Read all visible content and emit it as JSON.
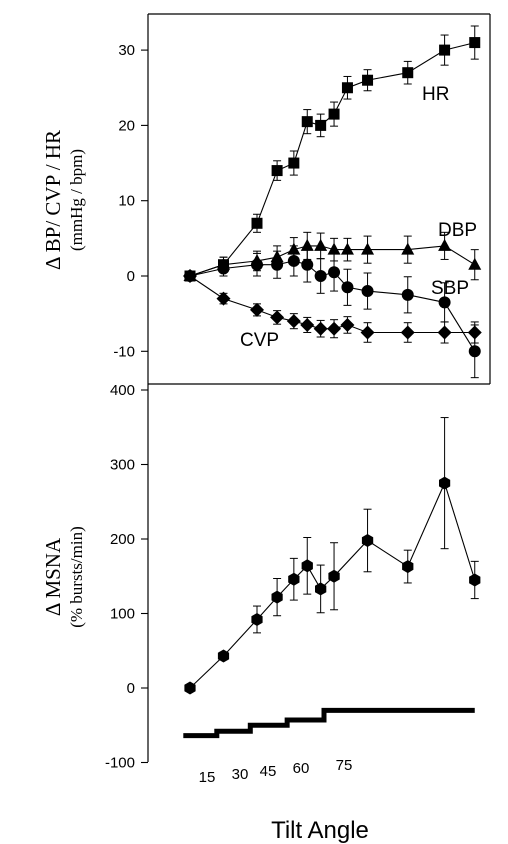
{
  "chart_data": [
    {
      "type": "line",
      "panel": "top",
      "ylabel": "Δ BP/ CVP / HR",
      "ylabel_unit": "(mmHg / bpm)",
      "ylim": [
        -14,
        35
      ],
      "yticks": [
        -10,
        0,
        10,
        20,
        30
      ],
      "ytick_labels": [
        "-10",
        "0",
        "10",
        "20",
        "30"
      ],
      "series": [
        {
          "name": "HR",
          "marker": "square",
          "x": [
            0,
            1,
            2,
            2.6,
            3.1,
            3.5,
            3.9,
            4.3,
            4.7,
            5.3,
            6.5,
            7.6,
            8.5
          ],
          "values": [
            0,
            1.5,
            7,
            14,
            15,
            20.5,
            20,
            21.5,
            25,
            26,
            27,
            30,
            31
          ],
          "errors": [
            0,
            1,
            1.2,
            1.3,
            1.6,
            1.6,
            1.5,
            1.6,
            1.5,
            1.4,
            1.5,
            2,
            2.2
          ]
        },
        {
          "name": "DBP",
          "marker": "triangle",
          "x": [
            0,
            1,
            2,
            2.6,
            3.1,
            3.5,
            3.9,
            4.3,
            4.7,
            5.3,
            6.5,
            7.6,
            8.5
          ],
          "values": [
            0,
            1.5,
            2,
            2.5,
            3.5,
            4,
            4,
            3.5,
            3.5,
            3.5,
            3.5,
            4,
            1.5
          ],
          "errors": [
            0,
            1,
            1.3,
            1.5,
            1.6,
            1.8,
            1.7,
            1.5,
            1.5,
            1.8,
            1.8,
            1.8,
            2
          ]
        },
        {
          "name": "SBP",
          "marker": "circle",
          "x": [
            0,
            1,
            2,
            2.6,
            3.1,
            3.5,
            3.9,
            4.3,
            4.7,
            5.3,
            6.5,
            7.6,
            8.5
          ],
          "values": [
            0,
            1,
            1.5,
            1.5,
            2,
            1.5,
            0,
            0.5,
            -1.5,
            -2,
            -2.5,
            -3.5,
            -10
          ],
          "errors": [
            0,
            1,
            1.5,
            1.8,
            2,
            2.3,
            2.3,
            2.5,
            2.4,
            2.4,
            2.4,
            2.6,
            3.5
          ]
        },
        {
          "name": "CVP",
          "marker": "diamond",
          "x": [
            0,
            1,
            2,
            2.6,
            3.1,
            3.5,
            3.9,
            4.3,
            4.7,
            5.3,
            6.5,
            7.6,
            8.5
          ],
          "values": [
            0,
            -3,
            -4.5,
            -5.5,
            -6,
            -6.5,
            -7,
            -7,
            -6.5,
            -7.5,
            -7.5,
            -7.5,
            -7.5
          ],
          "errors": [
            0,
            0.7,
            0.8,
            0.9,
            1,
            1,
            1.1,
            1.2,
            1.1,
            1.3,
            1.3,
            1.4,
            1.4
          ]
        }
      ]
    },
    {
      "type": "line",
      "panel": "bottom",
      "ylabel": "Δ MSNA",
      "ylabel_unit": "(% bursts/min)",
      "xlabel": "Tilt Angle",
      "ylim": [
        -100,
        400
      ],
      "yticks": [
        -100,
        0,
        100,
        200,
        300,
        400
      ],
      "ytick_labels": [
        "-100",
        "0",
        "100",
        "200",
        "300",
        "400"
      ],
      "series": [
        {
          "name": "MSNA",
          "marker": "hexagon",
          "x": [
            0,
            1,
            2,
            2.6,
            3.1,
            3.5,
            3.9,
            4.3,
            5.3,
            6.5,
            7.6,
            8.5
          ],
          "values": [
            0,
            43,
            92,
            122,
            146,
            164,
            133,
            150,
            198,
            163,
            275,
            145
          ],
          "errors": [
            0,
            5,
            18,
            25,
            28,
            38,
            32,
            45,
            42,
            22,
            88,
            25
          ]
        }
      ],
      "tilt_protocol": {
        "angle_labels": [
          "15",
          "30",
          "45",
          "60",
          "75"
        ],
        "steps": [
          {
            "x0": -0.2,
            "x1": 0.8,
            "level": -64
          },
          {
            "x0": 0.8,
            "x1": 1.8,
            "level": -58
          },
          {
            "x0": 1.8,
            "x1": 2.9,
            "level": -50
          },
          {
            "x0": 2.9,
            "x1": 4.0,
            "level": -43
          },
          {
            "x0": 4.0,
            "x1": 8.5,
            "level": -30
          }
        ]
      }
    }
  ]
}
